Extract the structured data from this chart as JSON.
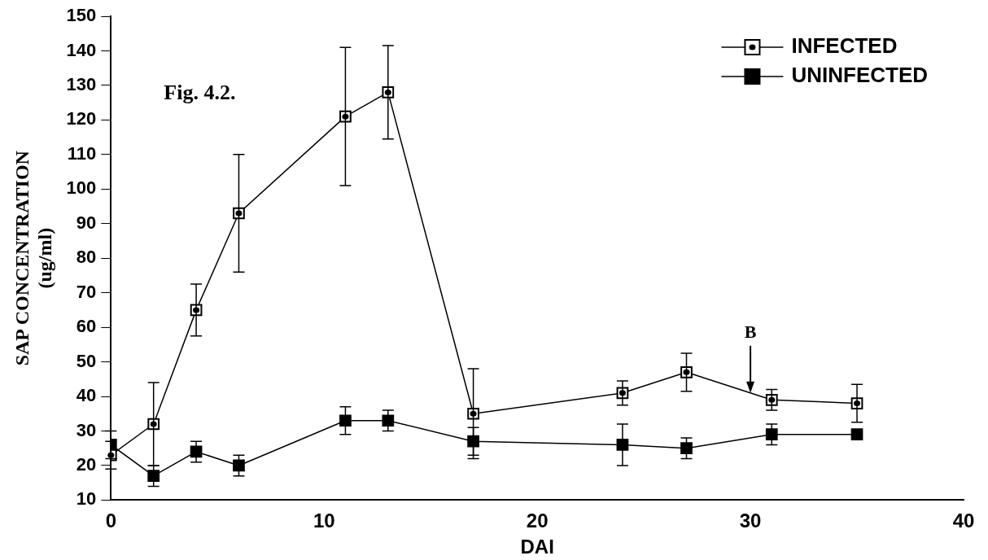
{
  "chart_data": {
    "type": "line",
    "xlabel": "DAI",
    "ylabel": "SAP CONCENTRATION\n(ug/ml)",
    "x": [
      0,
      2,
      4,
      6,
      11,
      13,
      17,
      24,
      27,
      31,
      35
    ],
    "series": [
      {
        "name": "INFECTED",
        "color": "#000000",
        "values": [
          23,
          32,
          65,
          93,
          121,
          128,
          35,
          41,
          47,
          39,
          38
        ],
        "errors": [
          4,
          12,
          7.5,
          17,
          20,
          13.5,
          13,
          3.5,
          5.5,
          3,
          5.5
        ]
      },
      {
        "name": "UNINFECTED",
        "color": "#000000",
        "values": [
          26,
          17,
          24,
          20,
          33,
          33,
          27,
          26,
          25,
          29,
          29
        ],
        "errors": [
          4,
          3,
          3,
          3,
          4,
          3,
          4,
          6,
          3,
          3,
          null
        ]
      }
    ],
    "xlim": [
      0,
      40
    ],
    "xticks": [
      0,
      10,
      20,
      30,
      40
    ],
    "ylim": [
      10,
      150
    ],
    "yticks": [
      10,
      20,
      30,
      40,
      50,
      60,
      70,
      80,
      90,
      100,
      110,
      120,
      130,
      140,
      150
    ],
    "annotations": [
      "Fig. 4.2.",
      {
        "text": "B",
        "x": 30,
        "y": 41
      }
    ],
    "grid": false,
    "legend": "top right",
    "marker": "square",
    "line_style": "solid"
  }
}
